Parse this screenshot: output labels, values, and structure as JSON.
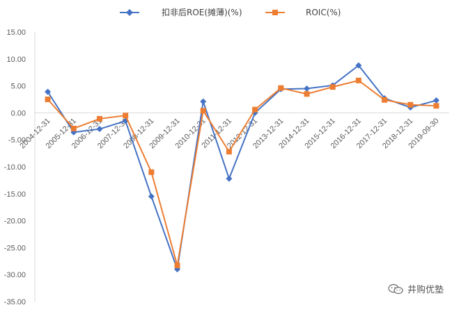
{
  "colors": {
    "roe": "#4472C4",
    "roic": "#ED7D31",
    "axis": "#D9D9D9"
  },
  "watermark": {
    "text": "井购优塾",
    "icon": "wechat-icon"
  },
  "chart_data": {
    "type": "line",
    "title": "",
    "xlabel": "",
    "ylabel": "",
    "ylim": [
      -35,
      15
    ],
    "yticks": [
      "15.00",
      "10.00",
      "5.00",
      "0.00",
      "-5.00",
      "-10.00",
      "-15.00",
      "-20.00",
      "-25.00",
      "-30.00",
      "-35.00"
    ],
    "ytick_values": [
      15,
      10,
      5,
      0,
      -5,
      -10,
      -15,
      -20,
      -25,
      -30,
      -35
    ],
    "grid": false,
    "legend_position": "top",
    "categories": [
      "2004-12-31",
      "2005-12-31",
      "2006-12-31",
      "2007-12-31",
      "2008-12-31",
      "2009-12-31",
      "2010-12-31",
      "2011-12-31",
      "2012-12-31",
      "2013-12-31",
      "2014-12-31",
      "2015-12-31",
      "2016-12-31",
      "2017-12-31",
      "2018-12-31",
      "2019-09-30"
    ],
    "series": [
      {
        "name": "扣非后ROE(摊薄)(%)",
        "marker": "diamond",
        "values": [
          3.9,
          -3.6,
          -3.0,
          -1.5,
          -15.5,
          -29.0,
          2.1,
          -12.2,
          0.0,
          4.4,
          4.5,
          5.1,
          8.8,
          2.7,
          1.0,
          2.3
        ]
      },
      {
        "name": "ROIC(%)",
        "marker": "square",
        "values": [
          2.5,
          -2.9,
          -1.1,
          -0.5,
          -11.0,
          -28.3,
          0.4,
          -7.2,
          0.6,
          4.6,
          3.5,
          4.8,
          6.0,
          2.4,
          1.5,
          1.3
        ]
      }
    ]
  }
}
